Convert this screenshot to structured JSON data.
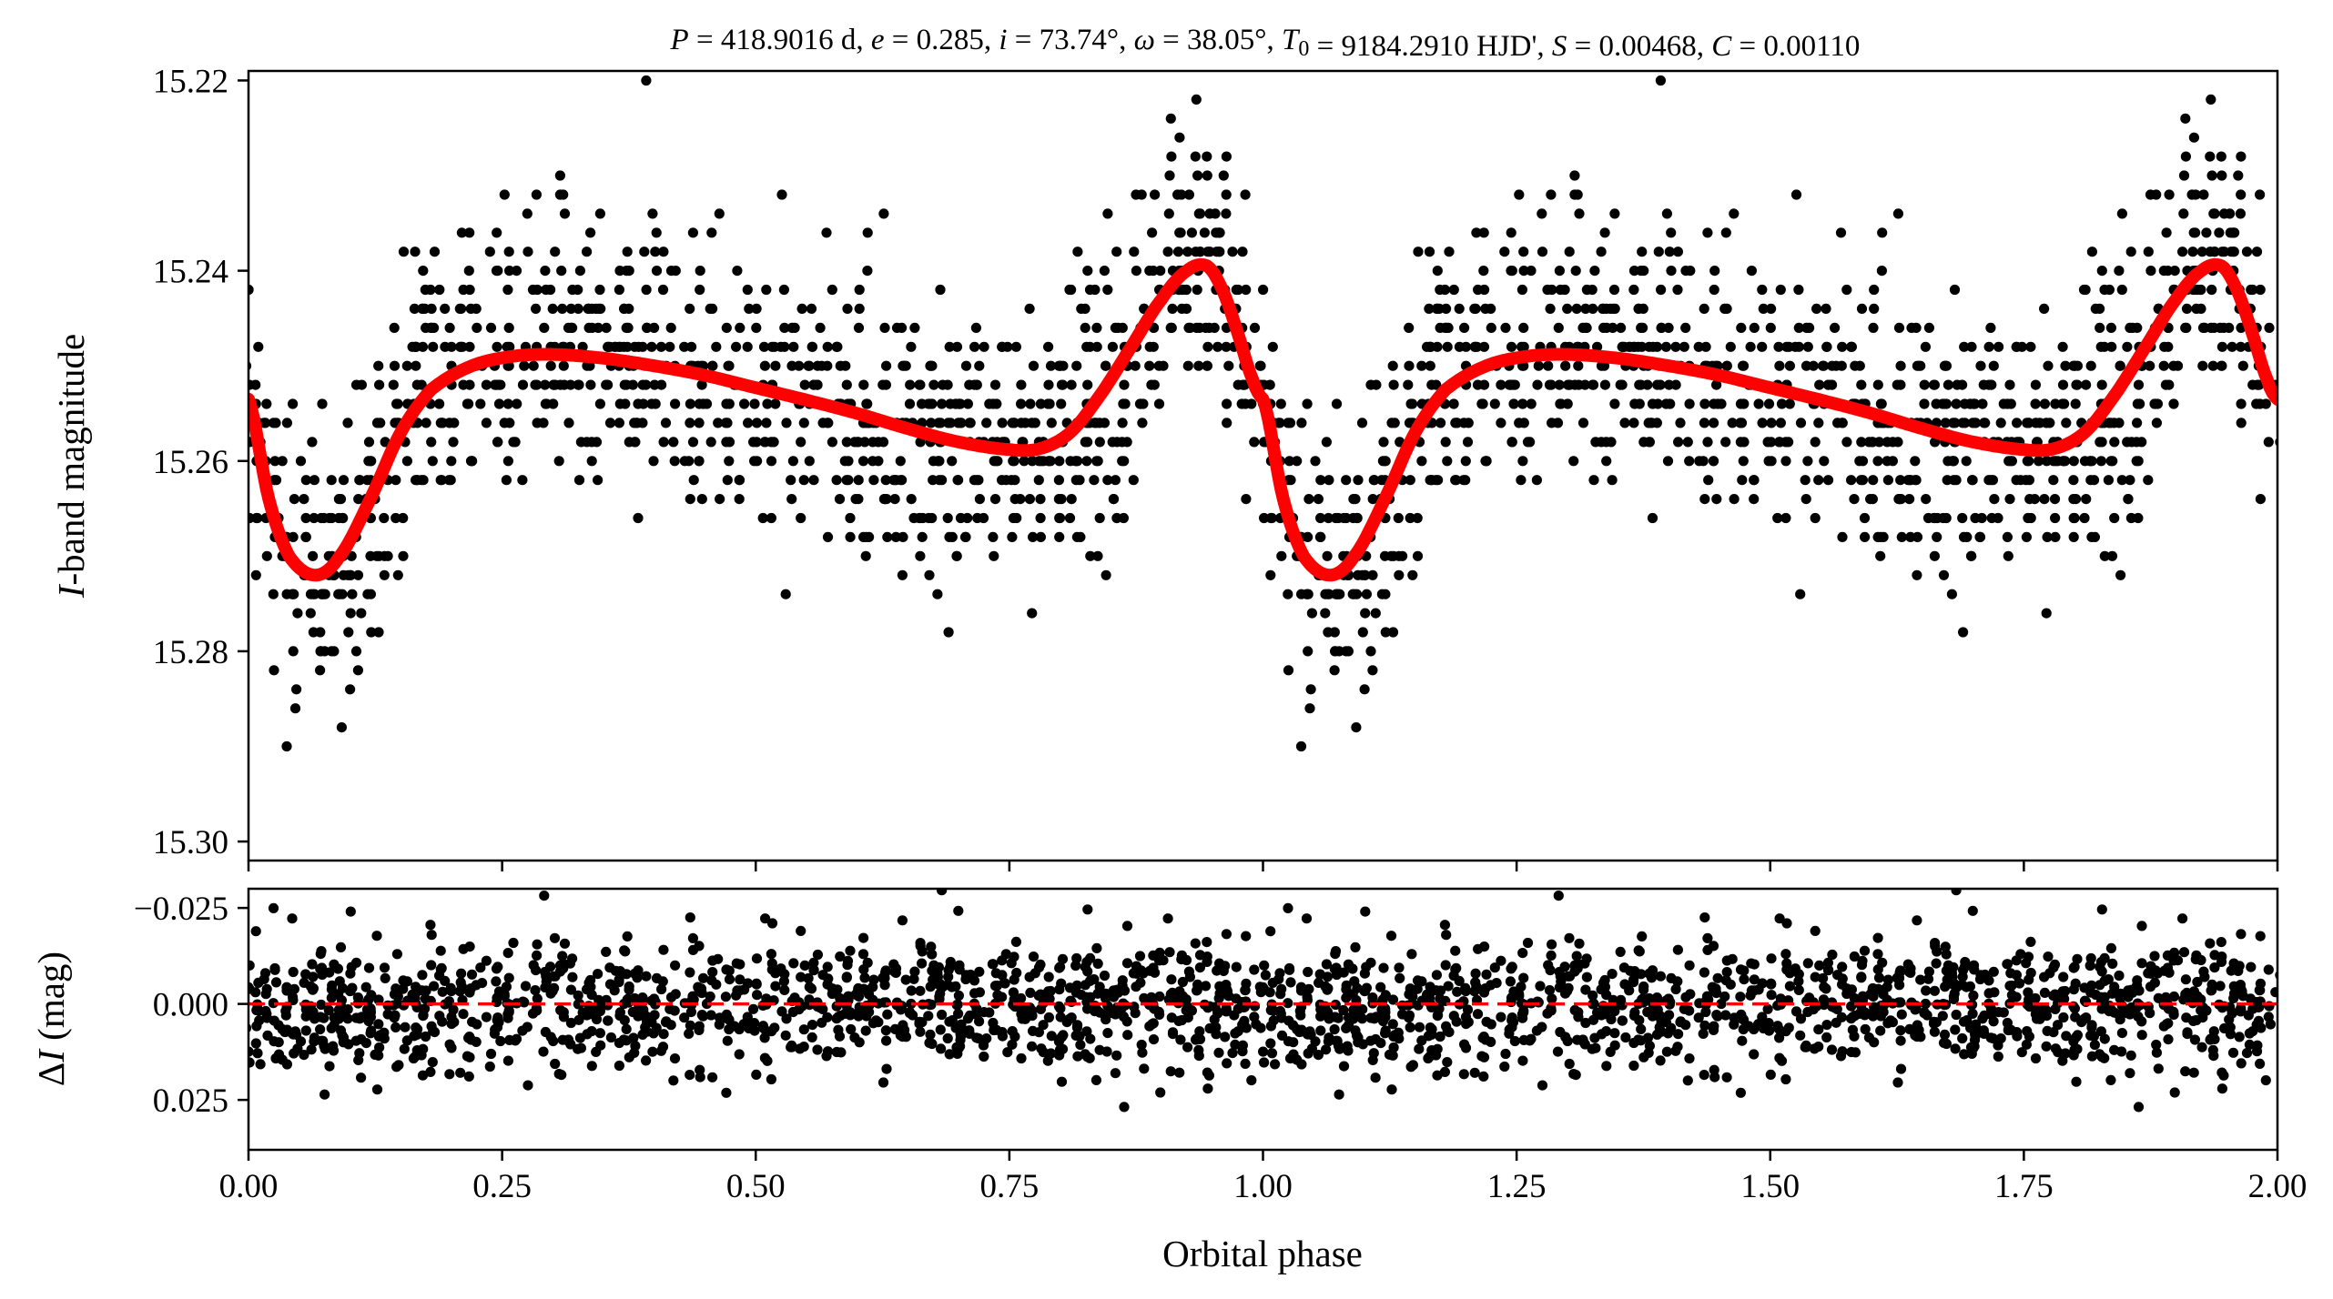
{
  "chart_data": [
    {
      "type": "scatter",
      "panel": "light-curve",
      "title_parts": [
        {
          "text": "P",
          "italic": true
        },
        {
          "text": " = 418.9016 d, ",
          "italic": false
        },
        {
          "text": "e",
          "italic": true
        },
        {
          "text": " = 0.285, ",
          "italic": false
        },
        {
          "text": "i",
          "italic": true
        },
        {
          "text": " = 73.74°, ",
          "italic": false
        },
        {
          "text": "ω",
          "italic": true
        },
        {
          "text": " = 38.05°, ",
          "italic": false
        },
        {
          "text": "T",
          "italic": true
        },
        {
          "text": "0",
          "italic": false,
          "sub": true
        },
        {
          "text": " = 9184.2910 HJD', ",
          "italic": false
        },
        {
          "text": "S",
          "italic": true
        },
        {
          "text": " = 0.00468, ",
          "italic": false
        },
        {
          "text": "C",
          "italic": true
        },
        {
          "text": " = 0.00110",
          "italic": false
        }
      ],
      "ylabel_italic": "I",
      "ylabel_rest": "-band magnitude",
      "xlim": [
        0.0,
        2.0
      ],
      "ylim": [
        15.302,
        15.219
      ],
      "y_inverted": true,
      "yticks": [
        15.22,
        15.24,
        15.26,
        15.28,
        15.3
      ],
      "ytick_labels": [
        "15.22",
        "15.24",
        "15.26",
        "15.28",
        "15.30"
      ],
      "point_color": "#000000",
      "model_color": "#ff0000",
      "model": {
        "name": "model",
        "x": [
          0.0,
          0.02,
          0.04,
          0.066,
          0.09,
          0.12,
          0.15,
          0.18,
          0.22,
          0.26,
          0.3,
          0.35,
          0.4,
          0.45,
          0.5,
          0.55,
          0.6,
          0.65,
          0.7,
          0.75,
          0.78,
          0.81,
          0.84,
          0.87,
          0.9,
          0.925,
          0.945,
          0.96,
          0.975,
          0.99,
          1.0
        ],
        "y": [
          15.2535,
          15.264,
          15.27,
          15.272,
          15.27,
          15.264,
          15.257,
          15.2525,
          15.25,
          15.249,
          15.2488,
          15.2492,
          15.25,
          15.251,
          15.2523,
          15.2536,
          15.255,
          15.2566,
          15.258,
          15.2588,
          15.2587,
          15.257,
          15.253,
          15.248,
          15.243,
          15.24,
          15.2395,
          15.242,
          15.2465,
          15.2515,
          15.2535
        ]
      },
      "scatter": {
        "name": "observations",
        "phase_period": 1.0,
        "phase_count": 1100,
        "mag_scatter_sd": 0.0072
      }
    },
    {
      "type": "scatter",
      "panel": "residuals",
      "ylabel_prefix": "Δ",
      "ylabel_italic": "I",
      "ylabel_rest": " (mag)",
      "xlabel": "Orbital phase",
      "xlim": [
        0.0,
        2.0
      ],
      "ylim": [
        0.038,
        -0.03
      ],
      "y_inverted": true,
      "xticks": [
        0.0,
        0.25,
        0.5,
        0.75,
        1.0,
        1.25,
        1.5,
        1.75,
        2.0
      ],
      "xtick_labels": [
        "0.00",
        "0.25",
        "0.50",
        "0.75",
        "1.00",
        "1.25",
        "1.50",
        "1.75",
        "2.00"
      ],
      "yticks": [
        -0.025,
        0.0,
        0.025
      ],
      "ytick_labels": [
        "−0.025",
        "0.000",
        "0.025"
      ],
      "zero_line": 0.0,
      "zero_line_color": "#ff0000",
      "residual_sd": 0.0085
    }
  ]
}
